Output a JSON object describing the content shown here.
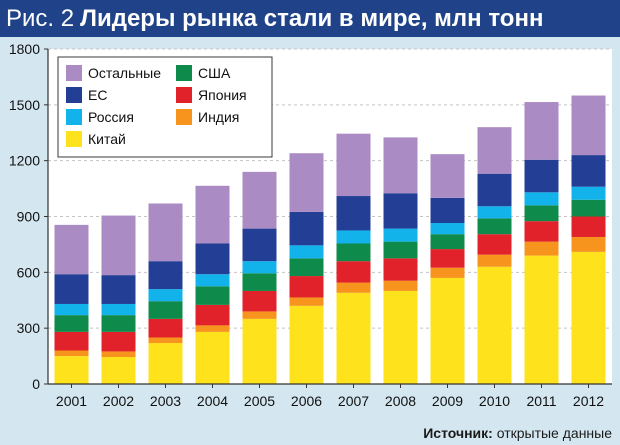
{
  "figure_label": "Рис. 2",
  "title": "Лидеры рынка стали в мире, млн тонн",
  "source_label": "Источник:",
  "source_text": "открытые данные",
  "chart_data": {
    "type": "bar",
    "stacked": true,
    "title": "Лидеры рынка стали в мире, млн тонн",
    "xlabel": "",
    "ylabel": "",
    "ylim": [
      0,
      1800
    ],
    "yticks": [
      0,
      300,
      600,
      900,
      1200,
      1500,
      1800
    ],
    "grid": true,
    "legend_position": "top-left",
    "categories": [
      "2001",
      "2002",
      "2003",
      "2004",
      "2005",
      "2006",
      "2007",
      "2008",
      "2009",
      "2010",
      "2011",
      "2012"
    ],
    "series": [
      {
        "name": "Китай",
        "color": "#fde21c",
        "values": [
          150,
          145,
          220,
          280,
          350,
          420,
          490,
          500,
          570,
          630,
          690,
          710
        ]
      },
      {
        "name": "Индия",
        "color": "#f7941d",
        "values": [
          30,
          30,
          30,
          35,
          40,
          45,
          55,
          55,
          55,
          65,
          75,
          80
        ]
      },
      {
        "name": "Япония",
        "color": "#e1222a",
        "values": [
          100,
          105,
          100,
          110,
          110,
          115,
          115,
          120,
          100,
          110,
          110,
          110
        ]
      },
      {
        "name": "США",
        "color": "#0e8a4a",
        "values": [
          90,
          90,
          95,
          100,
          95,
          95,
          95,
          90,
          80,
          85,
          85,
          90
        ]
      },
      {
        "name": "Россия",
        "color": "#11b3ea",
        "values": [
          60,
          60,
          65,
          65,
          65,
          70,
          70,
          70,
          60,
          65,
          70,
          70
        ]
      },
      {
        "name": "ЕС",
        "color": "#233f95",
        "values": [
          160,
          155,
          150,
          165,
          175,
          180,
          185,
          190,
          135,
          175,
          175,
          170
        ]
      },
      {
        "name": "Остальные",
        "color": "#ab8bc3",
        "values": [
          265,
          320,
          310,
          310,
          305,
          315,
          335,
          300,
          235,
          250,
          310,
          320
        ]
      }
    ],
    "legend_order": [
      "Остальные",
      "США",
      "ЕС",
      "Япония",
      "Россия",
      "Индия",
      "Китай"
    ]
  }
}
